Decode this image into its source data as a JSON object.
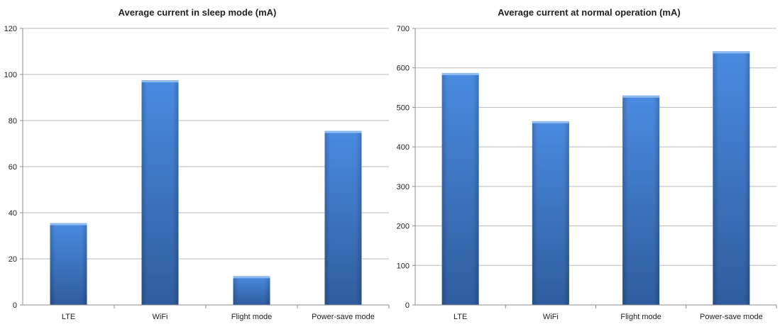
{
  "chart_data": [
    {
      "type": "bar",
      "title": "Average current in sleep mode (mA)",
      "categories": [
        "LTE",
        "WiFi",
        "Flight mode",
        "Power-save mode"
      ],
      "values": [
        35.5,
        97.5,
        12.5,
        75.5
      ],
      "ylim": [
        0,
        120
      ],
      "yticks": [
        0,
        20,
        40,
        60,
        80,
        100,
        120
      ],
      "grid": true,
      "legend": "none",
      "color": "#3f78c8"
    },
    {
      "type": "bar",
      "title": "Average current at normal operation (mA)",
      "categories": [
        "LTE",
        "WiFi",
        "Flight mode",
        "Power-save mode"
      ],
      "values": [
        587,
        465,
        530,
        642
      ],
      "ylim": [
        0,
        700
      ],
      "yticks": [
        0,
        100,
        200,
        300,
        400,
        500,
        600,
        700
      ],
      "grid": true,
      "legend": "none",
      "color": "#3f78c8"
    }
  ]
}
